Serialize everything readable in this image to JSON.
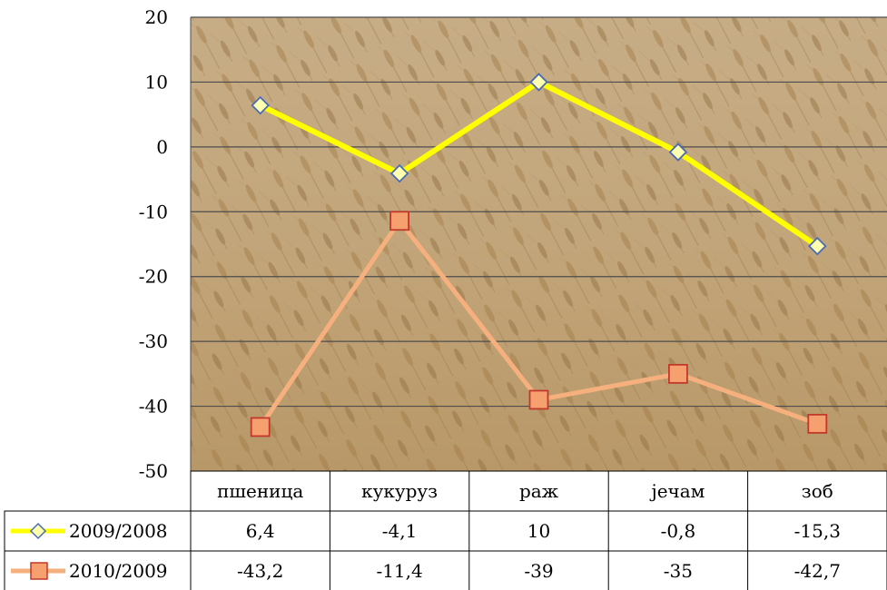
{
  "chart_data": {
    "type": "line",
    "categories": [
      "пшеница",
      "кукуруз",
      "раж",
      "јечам",
      "зоб"
    ],
    "series": [
      {
        "name": "2009/2008",
        "values": [
          6.4,
          -4.1,
          10,
          -0.8,
          -15.3
        ],
        "value_labels": [
          "6,4",
          "-4,1",
          "10",
          "-0,8",
          "-15,3"
        ],
        "color": "#ffff00",
        "marker": "diamond",
        "marker_fill": "#ffffb0",
        "marker_stroke": "#4a6bb5"
      },
      {
        "name": "2010/2009",
        "values": [
          -43.2,
          -11.4,
          -39,
          -35,
          -42.7
        ],
        "value_labels": [
          "-43,2",
          "-11,4",
          "-39",
          "-35",
          "-42,7"
        ],
        "color": "#f6b07e",
        "marker": "square",
        "marker_fill": "#f6a070",
        "marker_stroke": "#c0392b"
      }
    ],
    "y_tick_labels": [
      "20",
      "10",
      "0",
      "-10",
      "-20",
      "-30",
      "-40",
      "-50"
    ],
    "ylim": [
      -50,
      20
    ],
    "ytick_step": 10,
    "grid": true,
    "legend": "data-table",
    "plot_background": "wheat field photo",
    "gridline_color": "#4d4d4d"
  }
}
